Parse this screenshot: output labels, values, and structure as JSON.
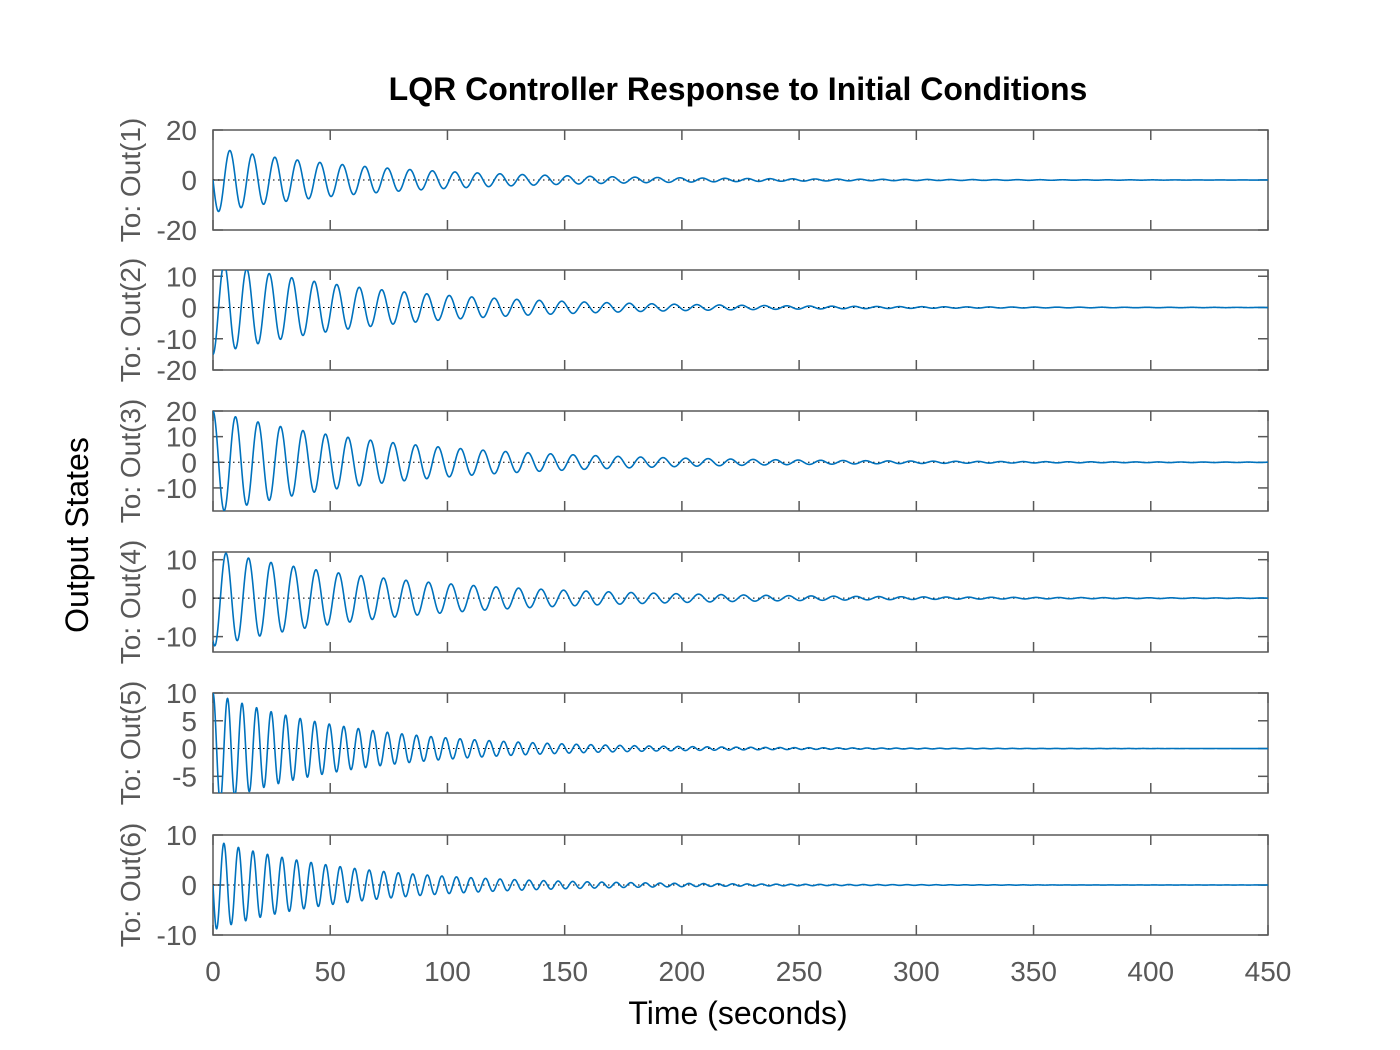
{
  "chart_data": {
    "type": "line",
    "title": "LQR Controller Response to Initial Conditions",
    "xlabel": "Time (seconds)",
    "ylabel": "Output States",
    "xlim": [
      0,
      450
    ],
    "xticks": [
      "0",
      "50",
      "100",
      "150",
      "200",
      "250",
      "300",
      "350",
      "400",
      "450"
    ],
    "line_color": "#0072BD",
    "grid": false,
    "subplots": [
      {
        "ylabel": "To: Out(1)",
        "ylim": [
          -20,
          20
        ],
        "yticks": [
          20,
          0,
          -20
        ],
        "series": [
          {
            "x0": 0,
            "y0": 0,
            "first_extreme": -17,
            "peaks": [
              13,
              13,
              10
            ],
            "envelope_peak": 13,
            "decay_per_sec": 0.0135,
            "period": 9.6,
            "x_end": 450
          }
        ]
      },
      {
        "ylabel": "To: Out(2)",
        "ylim": [
          -20,
          12
        ],
        "yticks": [
          10,
          0,
          -10,
          -20
        ],
        "series": [
          {
            "x0": 0,
            "y0": -15,
            "first_extreme": 11,
            "peaks": [
              11,
              8,
              7
            ],
            "envelope_peak": 11,
            "decay_per_sec": 0.0135,
            "period": 9.6,
            "x_end": 450
          }
        ]
      },
      {
        "ylabel": "To: Out(3)",
        "ylim": [
          -19,
          20
        ],
        "yticks": [
          20,
          10,
          0,
          -10
        ],
        "series": [
          {
            "x0": 0,
            "y0": 20,
            "first_extreme": -19,
            "peaks": [
              18,
              17,
              14
            ],
            "envelope_peak": 20,
            "decay_per_sec": 0.0125,
            "period": 9.6,
            "x_end": 450
          }
        ]
      },
      {
        "ylabel": "To: Out(4)",
        "ylim": [
          -14,
          12
        ],
        "yticks": [
          10,
          0,
          -10
        ],
        "series": [
          {
            "x0": 0,
            "y0": -11,
            "first_extreme": -14,
            "peaks": [
              12,
              12,
              11
            ],
            "envelope_peak": 12.5,
            "decay_per_sec": 0.012,
            "period": 9.6,
            "x_end": 450
          }
        ]
      },
      {
        "ylabel": "To: Out(5)",
        "ylim": [
          -8,
          10
        ],
        "yticks": [
          10,
          5,
          0,
          -5
        ],
        "series": [
          {
            "x0": 0,
            "y0": 10,
            "first_extreme": -8,
            "peaks": [
              7,
              8.5,
              8
            ],
            "envelope_peak": 9,
            "decay_per_sec": 0.0165,
            "period": 6.2,
            "x_end": 450
          }
        ]
      },
      {
        "ylabel": "To: Out(6)",
        "ylim": [
          -10,
          10
        ],
        "yticks": [
          10,
          0,
          -10
        ],
        "series": [
          {
            "x0": 0,
            "y0": 0,
            "first_extreme": -9,
            "peaks": [
              8,
              8,
              7
            ],
            "envelope_peak": 9,
            "decay_per_sec": 0.0165,
            "period": 6.2,
            "x_end": 450
          }
        ]
      }
    ]
  }
}
